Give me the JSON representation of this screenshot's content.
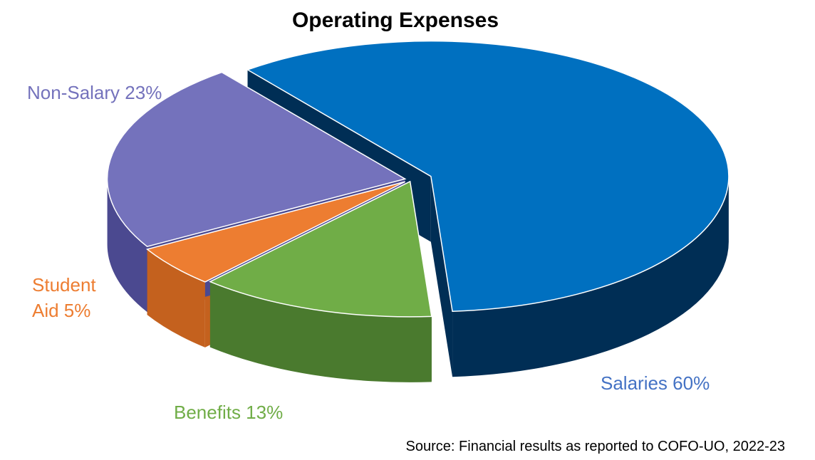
{
  "chart_data": {
    "type": "pie",
    "style": "3d-exploded",
    "title": "Operating Expenses",
    "slices": [
      {
        "name": "Salaries",
        "label": "Salaries 60%",
        "value": 60,
        "color": "#0070C0",
        "side_color": "#002E55",
        "label_color": "#4472C4"
      },
      {
        "name": "Benefits",
        "label": "Benefits 13%",
        "value": 13,
        "color": "#70AD47",
        "side_color": "#4A7A2E",
        "label_color": "#70AD47"
      },
      {
        "name": "Student Aid",
        "label_line1": "Student",
        "label_line2": "Aid 5%",
        "value": 5,
        "color": "#ED7D31",
        "side_color": "#C4611E",
        "label_color": "#ED7D31"
      },
      {
        "name": "Non-Salary",
        "label": "Non-Salary 23%",
        "value": 23,
        "color": "#7472BC",
        "side_color": "#4B4990",
        "label_color": "#7472BC"
      }
    ],
    "source": "Source: Financial results as reported to COFO-UO, 2022-23"
  }
}
